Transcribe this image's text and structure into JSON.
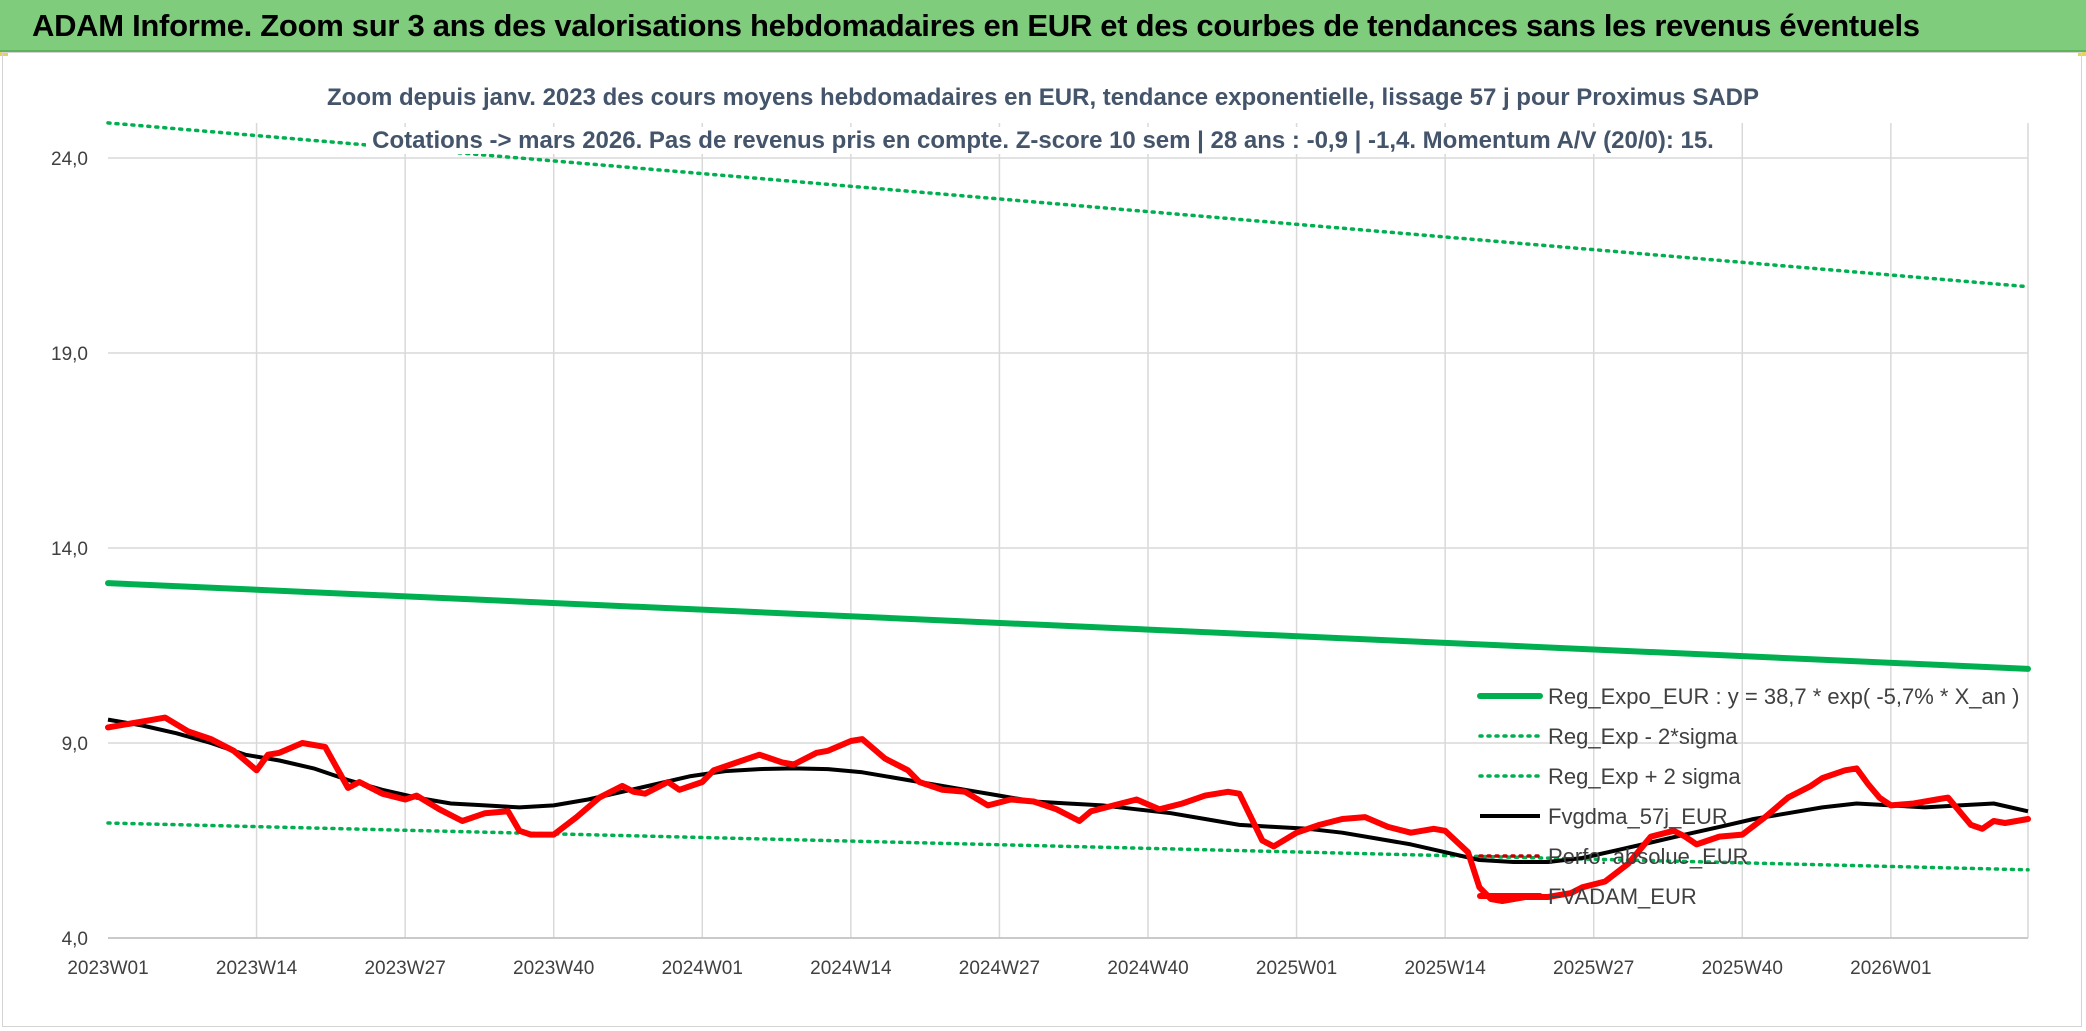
{
  "banner": {
    "title": "ADAM Informe. Zoom sur 3 ans des valorisations hebdomadaires en EUR et des courbes de tendances sans les revenus éventuels"
  },
  "colors": {
    "banner_bg": "#7fcd7c",
    "trend": "#00b050",
    "fvadam": "#ff0000",
    "fvgdma": "#000000",
    "subtitle": "#44546a",
    "grid": "#d9d9d9"
  },
  "chart_data": {
    "type": "line",
    "title": "Zoom depuis janv. 2023 des cours moyens hebdomadaires en EUR, tendance exponentielle, lissage 57 j pour Proximus SADP",
    "subtitle": "Cotations -> mars 2026. Pas de revenus pris en compte. Z-score 10 sem | 28 ans : -0,9 | -1,4. Momentum A/V (20/0): 15.",
    "x_ticks": [
      "2023W01",
      "2023W14",
      "2023W27",
      "2023W40",
      "2024W01",
      "2024W14",
      "2024W27",
      "2024W40",
      "2025W01",
      "2025W14",
      "2025W27",
      "2025W40",
      "2026W01"
    ],
    "y_ticks": [
      "4,0",
      "9,0",
      "14,0",
      "19,0",
      "24,0"
    ],
    "ylim": [
      4,
      24
    ],
    "weeks": 169,
    "grid": true,
    "legend_position": "right",
    "series": [
      {
        "name": "Reg_Expo_EUR : y = 38,7 * exp( -5,7% *  X_an )",
        "style": "solid-thick",
        "color": "#00b050",
        "values": [
          [
            0,
            13.1
          ],
          [
            168,
            10.9
          ]
        ]
      },
      {
        "name": "Reg_Exp - 2*sigma",
        "style": "dotted",
        "color": "#00b050",
        "values": [
          [
            0,
            6.95
          ],
          [
            168,
            5.75
          ]
        ]
      },
      {
        "name": "Reg_Exp + 2 sigma",
        "style": "dotted",
        "color": "#00b050",
        "values": [
          [
            0,
            24.9
          ],
          [
            168,
            20.7
          ]
        ]
      },
      {
        "name": "Fvgdma_57j_EUR",
        "style": "solid",
        "color": "#000000",
        "values": [
          [
            0,
            9.6
          ],
          [
            3,
            9.45
          ],
          [
            6,
            9.25
          ],
          [
            9,
            9.0
          ],
          [
            12,
            8.7
          ],
          [
            15,
            8.55
          ],
          [
            18,
            8.35
          ],
          [
            21,
            8.05
          ],
          [
            24,
            7.8
          ],
          [
            27,
            7.6
          ],
          [
            30,
            7.45
          ],
          [
            33,
            7.4
          ],
          [
            36,
            7.35
          ],
          [
            39,
            7.4
          ],
          [
            42,
            7.55
          ],
          [
            45,
            7.75
          ],
          [
            48,
            7.95
          ],
          [
            51,
            8.15
          ],
          [
            54,
            8.28
          ],
          [
            57,
            8.33
          ],
          [
            60,
            8.35
          ],
          [
            63,
            8.33
          ],
          [
            66,
            8.25
          ],
          [
            69,
            8.1
          ],
          [
            72,
            7.95
          ],
          [
            75,
            7.8
          ],
          [
            78,
            7.65
          ],
          [
            81,
            7.5
          ],
          [
            84,
            7.45
          ],
          [
            87,
            7.4
          ],
          [
            90,
            7.3
          ],
          [
            93,
            7.2
          ],
          [
            96,
            7.05
          ],
          [
            99,
            6.9
          ],
          [
            102,
            6.85
          ],
          [
            105,
            6.8
          ],
          [
            108,
            6.7
          ],
          [
            111,
            6.55
          ],
          [
            114,
            6.4
          ],
          [
            117,
            6.2
          ],
          [
            120,
            6.0
          ],
          [
            123,
            5.95
          ],
          [
            126,
            5.95
          ],
          [
            129,
            6.05
          ],
          [
            132,
            6.25
          ],
          [
            135,
            6.45
          ],
          [
            138,
            6.65
          ],
          [
            141,
            6.85
          ],
          [
            144,
            7.05
          ],
          [
            147,
            7.2
          ],
          [
            150,
            7.35
          ],
          [
            153,
            7.45
          ],
          [
            156,
            7.4
          ],
          [
            159,
            7.35
          ],
          [
            162,
            7.4
          ],
          [
            165,
            7.45
          ],
          [
            168,
            7.25
          ]
        ]
      },
      {
        "name": "Perfo. absolue_EUR",
        "style": "dotted",
        "color": "#c00000",
        "values": []
      },
      {
        "name": "FVADAM_EUR",
        "style": "solid-thick",
        "color": "#ff0000",
        "values": [
          [
            0,
            9.4
          ],
          [
            2,
            9.5
          ],
          [
            4,
            9.6
          ],
          [
            5,
            9.65
          ],
          [
            7,
            9.3
          ],
          [
            9,
            9.1
          ],
          [
            11,
            8.8
          ],
          [
            13,
            8.3
          ],
          [
            14,
            8.7
          ],
          [
            15,
            8.75
          ],
          [
            17,
            9.0
          ],
          [
            19,
            8.9
          ],
          [
            21,
            7.85
          ],
          [
            22,
            8.0
          ],
          [
            24,
            7.7
          ],
          [
            26,
            7.55
          ],
          [
            27,
            7.65
          ],
          [
            29,
            7.3
          ],
          [
            31,
            7.0
          ],
          [
            33,
            7.2
          ],
          [
            35,
            7.25
          ],
          [
            36,
            6.75
          ],
          [
            37,
            6.65
          ],
          [
            39,
            6.65
          ],
          [
            41,
            7.1
          ],
          [
            43,
            7.6
          ],
          [
            45,
            7.9
          ],
          [
            46,
            7.75
          ],
          [
            47,
            7.7
          ],
          [
            49,
            8.0
          ],
          [
            50,
            7.8
          ],
          [
            52,
            8.0
          ],
          [
            53,
            8.3
          ],
          [
            55,
            8.5
          ],
          [
            57,
            8.7
          ],
          [
            59,
            8.5
          ],
          [
            60,
            8.45
          ],
          [
            62,
            8.75
          ],
          [
            63,
            8.8
          ],
          [
            65,
            9.05
          ],
          [
            66,
            9.1
          ],
          [
            68,
            8.6
          ],
          [
            70,
            8.3
          ],
          [
            71,
            8.0
          ],
          [
            73,
            7.8
          ],
          [
            75,
            7.75
          ],
          [
            77,
            7.4
          ],
          [
            79,
            7.55
          ],
          [
            81,
            7.5
          ],
          [
            83,
            7.3
          ],
          [
            85,
            7.0
          ],
          [
            86,
            7.25
          ],
          [
            88,
            7.4
          ],
          [
            90,
            7.55
          ],
          [
            92,
            7.3
          ],
          [
            94,
            7.45
          ],
          [
            96,
            7.65
          ],
          [
            98,
            7.75
          ],
          [
            99,
            7.7
          ],
          [
            101,
            6.5
          ],
          [
            102,
            6.35
          ],
          [
            104,
            6.7
          ],
          [
            106,
            6.9
          ],
          [
            108,
            7.05
          ],
          [
            110,
            7.1
          ],
          [
            112,
            6.85
          ],
          [
            114,
            6.7
          ],
          [
            116,
            6.8
          ],
          [
            117,
            6.75
          ],
          [
            119,
            6.2
          ],
          [
            120,
            5.3
          ],
          [
            121,
            5.0
          ],
          [
            122,
            4.95
          ],
          [
            124,
            5.05
          ],
          [
            126,
            5.05
          ],
          [
            128,
            5.15
          ],
          [
            129,
            5.3
          ],
          [
            131,
            5.45
          ],
          [
            133,
            5.9
          ],
          [
            135,
            6.6
          ],
          [
            137,
            6.75
          ],
          [
            138,
            6.6
          ],
          [
            139,
            6.4
          ],
          [
            141,
            6.6
          ],
          [
            143,
            6.65
          ],
          [
            145,
            7.1
          ],
          [
            147,
            7.6
          ],
          [
            149,
            7.9
          ],
          [
            150,
            8.1
          ],
          [
            152,
            8.3
          ],
          [
            153,
            8.35
          ],
          [
            154,
            7.95
          ],
          [
            155,
            7.6
          ],
          [
            156,
            7.4
          ],
          [
            158,
            7.45
          ],
          [
            160,
            7.55
          ],
          [
            161,
            7.6
          ],
          [
            163,
            6.9
          ],
          [
            164,
            6.8
          ],
          [
            165,
            7.0
          ],
          [
            166,
            6.95
          ],
          [
            168,
            7.05
          ]
        ]
      }
    ]
  }
}
